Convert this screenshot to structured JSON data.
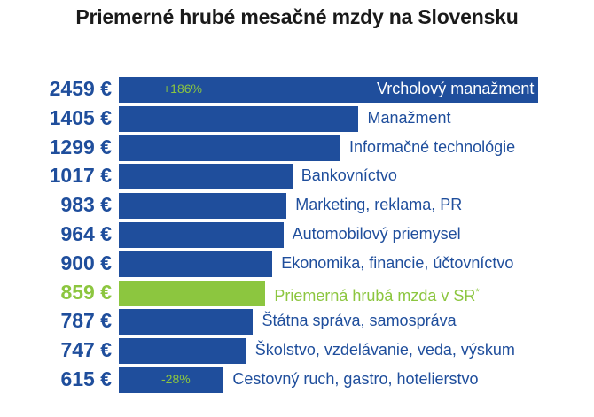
{
  "chart_data": {
    "type": "bar",
    "title": "Priemerné hrubé mesačné mzdy na Slovensku",
    "orientation": "horizontal",
    "unit": "€",
    "categories": [
      "Vrcholový manažment",
      "Manažment",
      "Informačné technológie",
      "Bankovníctvo",
      "Marketing, reklama, PR",
      "Automobilový priemysel",
      "Ekonomika, financie, účtovníctvo",
      "Priemerná hrubá mzda v SR",
      "Štátna správa, samospráva",
      "Školstvo, vzdelávanie, veda, výskum",
      "Cestovný ruch, gastro, hotelierstvo"
    ],
    "values": [
      2459,
      1405,
      1299,
      1017,
      983,
      964,
      900,
      859,
      787,
      747,
      615
    ],
    "value_labels": [
      "2459 €",
      "1405 €",
      "1299 €",
      "1017 €",
      "983 €",
      "964 €",
      "900 €",
      "859 €",
      "787 €",
      "747 €",
      "615 €"
    ],
    "highlight_index": 7,
    "highlight_marker": "*",
    "annotations": [
      {
        "category": "Vrcholový manažment",
        "text": "+186%"
      },
      {
        "category": "Cestovný ruch, gastro, hotelierstvo",
        "text": "-28%"
      }
    ],
    "colors": {
      "bar": "#1f4e9c",
      "highlight": "#8cc63f",
      "value_text": "#1f4e9c",
      "annotation": "#8cc63f"
    }
  }
}
